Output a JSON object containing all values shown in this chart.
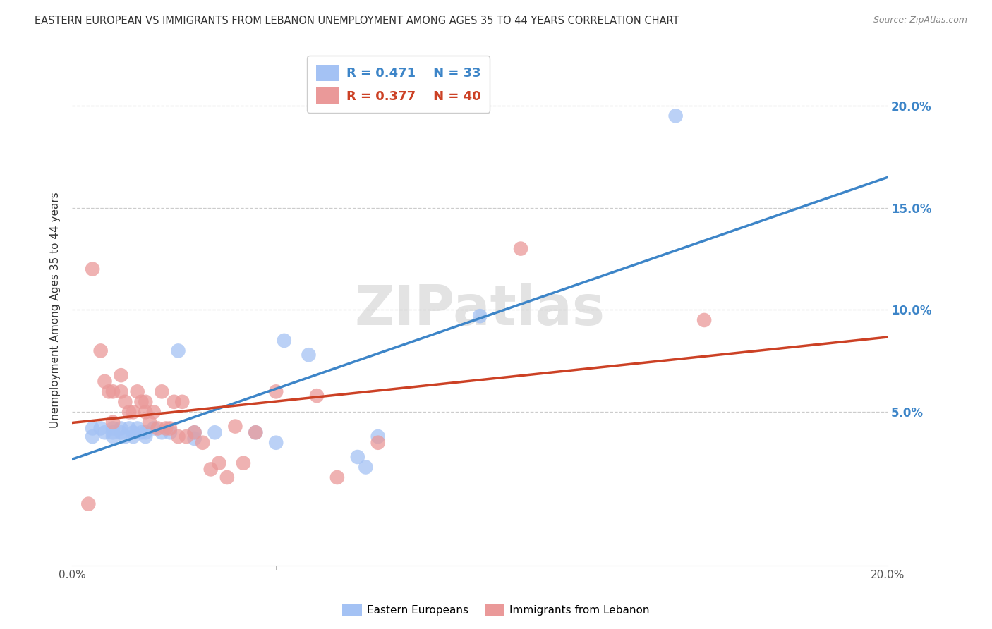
{
  "title": "EASTERN EUROPEAN VS IMMIGRANTS FROM LEBANON UNEMPLOYMENT AMONG AGES 35 TO 44 YEARS CORRELATION CHART",
  "source": "Source: ZipAtlas.com",
  "ylabel": "Unemployment Among Ages 35 to 44 years",
  "xlim": [
    0.0,
    0.2
  ],
  "ylim": [
    -0.025,
    0.225
  ],
  "xticks": [
    0.0,
    0.2
  ],
  "xtick_labels": [
    "0.0%",
    "20.0%"
  ],
  "yticks": [
    0.05,
    0.1,
    0.15,
    0.2
  ],
  "ytick_labels": [
    "5.0%",
    "10.0%",
    "15.0%",
    "20.0%"
  ],
  "blue_R": 0.471,
  "blue_N": 33,
  "pink_R": 0.377,
  "pink_N": 40,
  "blue_color": "#a4c2f4",
  "pink_color": "#ea9999",
  "blue_line_color": "#3d85c8",
  "pink_line_color": "#cc4125",
  "watermark_text": "ZIPatlas",
  "legend_R_color": "#3d85c8",
  "legend_pink_color": "#cc4125",
  "blue_x": [
    0.005,
    0.005,
    0.007,
    0.008,
    0.01,
    0.01,
    0.01,
    0.012,
    0.012,
    0.013,
    0.014,
    0.015,
    0.015,
    0.016,
    0.017,
    0.018,
    0.018,
    0.02,
    0.022,
    0.024,
    0.026,
    0.03,
    0.03,
    0.035,
    0.045,
    0.05,
    0.052,
    0.058,
    0.07,
    0.072,
    0.075,
    0.1,
    0.148
  ],
  "blue_y": [
    0.042,
    0.038,
    0.042,
    0.04,
    0.042,
    0.038,
    0.04,
    0.042,
    0.04,
    0.038,
    0.042,
    0.038,
    0.04,
    0.042,
    0.04,
    0.038,
    0.04,
    0.042,
    0.04,
    0.04,
    0.08,
    0.04,
    0.037,
    0.04,
    0.04,
    0.035,
    0.085,
    0.078,
    0.028,
    0.023,
    0.038,
    0.097,
    0.195
  ],
  "pink_x": [
    0.004,
    0.005,
    0.007,
    0.008,
    0.009,
    0.01,
    0.01,
    0.012,
    0.012,
    0.013,
    0.014,
    0.015,
    0.016,
    0.017,
    0.018,
    0.018,
    0.019,
    0.02,
    0.021,
    0.022,
    0.023,
    0.024,
    0.025,
    0.026,
    0.027,
    0.028,
    0.03,
    0.032,
    0.034,
    0.036,
    0.038,
    0.04,
    0.042,
    0.045,
    0.05,
    0.06,
    0.065,
    0.075,
    0.11,
    0.155
  ],
  "pink_y": [
    0.005,
    0.12,
    0.08,
    0.065,
    0.06,
    0.06,
    0.045,
    0.068,
    0.06,
    0.055,
    0.05,
    0.05,
    0.06,
    0.055,
    0.055,
    0.05,
    0.045,
    0.05,
    0.042,
    0.06,
    0.042,
    0.042,
    0.055,
    0.038,
    0.055,
    0.038,
    0.04,
    0.035,
    0.022,
    0.025,
    0.018,
    0.043,
    0.025,
    0.04,
    0.06,
    0.058,
    0.018,
    0.035,
    0.13,
    0.095
  ]
}
